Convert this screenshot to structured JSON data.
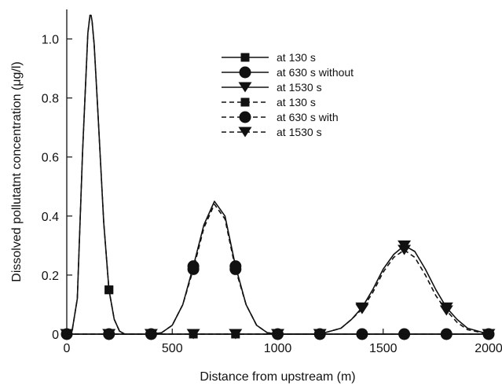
{
  "chart_data": {
    "type": "line",
    "title": "",
    "xlabel": "Distance from upstream (m)",
    "ylabel": "Dissolved pollutatnt concentration (μg/l)",
    "xlim": [
      0,
      2000
    ],
    "ylim": [
      0,
      1.1
    ],
    "xticks": [
      0,
      500,
      1000,
      1500,
      2000
    ],
    "yticks": [
      0,
      0.2,
      0.4,
      0.6,
      0.8,
      1.0
    ],
    "xtick_labels": [
      "0",
      "500",
      "1000",
      "1500",
      "2000"
    ],
    "ytick_labels": [
      "0",
      "0.2",
      "0.4",
      "0.6",
      "0.8",
      "1.0"
    ],
    "grid": false,
    "legend_position": "top-right",
    "series": [
      {
        "name": "at 130 s",
        "line": "solid",
        "marker": "square",
        "x": [
          0,
          25,
          50,
          75,
          100,
          110,
          115,
          120,
          130,
          150,
          175,
          200,
          225,
          250,
          275,
          300,
          2000
        ],
        "y": [
          0,
          0.01,
          0.12,
          0.62,
          1.02,
          1.08,
          1.08,
          1.06,
          0.98,
          0.72,
          0.38,
          0.15,
          0.05,
          0.01,
          0.0,
          0,
          0
        ],
        "marker_x": [
          200,
          400,
          600,
          800,
          1000,
          1200,
          1400,
          1600,
          1800,
          2000
        ],
        "marker_y": [
          0.15,
          0,
          0,
          0,
          0,
          0,
          0,
          0,
          0,
          0
        ]
      },
      {
        "name": "at 630 s without",
        "line": "solid",
        "marker": "circle",
        "x": [
          0,
          400,
          450,
          500,
          550,
          600,
          650,
          700,
          750,
          800,
          850,
          900,
          950,
          1000,
          2000
        ],
        "y": [
          0,
          0,
          0.005,
          0.03,
          0.1,
          0.23,
          0.37,
          0.45,
          0.4,
          0.23,
          0.1,
          0.03,
          0.005,
          0,
          0
        ],
        "marker_x": [
          0,
          200,
          400,
          600,
          800,
          1000,
          1200,
          1400,
          1600,
          1800,
          2000
        ],
        "marker_y": [
          0,
          0,
          0,
          0.23,
          0.23,
          0,
          0,
          0,
          0,
          0,
          0
        ]
      },
      {
        "name": "at 1530 s",
        "line": "solid",
        "marker": "triangle-down",
        "x": [
          0,
          1200,
          1300,
          1350,
          1400,
          1450,
          1500,
          1550,
          1600,
          1650,
          1700,
          1750,
          1800,
          1850,
          1900,
          2000
        ],
        "y": [
          0,
          0,
          0.02,
          0.05,
          0.09,
          0.15,
          0.22,
          0.27,
          0.3,
          0.28,
          0.22,
          0.15,
          0.09,
          0.05,
          0.02,
          0
        ],
        "marker_x": [
          0,
          200,
          400,
          600,
          800,
          1000,
          1200,
          1400,
          1600,
          1800,
          2000
        ],
        "marker_y": [
          0,
          0,
          0,
          0,
          0,
          0,
          0,
          0.09,
          0.3,
          0.09,
          0
        ]
      },
      {
        "name": "at 130 s",
        "line": "dashed",
        "marker": "square",
        "x": [
          0,
          25,
          50,
          75,
          100,
          110,
          115,
          120,
          130,
          150,
          175,
          200,
          225,
          250,
          275,
          300,
          2000
        ],
        "y": [
          0,
          0.01,
          0.12,
          0.62,
          1.02,
          1.08,
          1.08,
          1.06,
          0.98,
          0.72,
          0.38,
          0.15,
          0.05,
          0.01,
          0.0,
          0,
          0
        ],
        "marker_x": [
          200
        ],
        "marker_y": [
          0.15
        ]
      },
      {
        "name": "at 630 s with",
        "line": "dashed",
        "marker": "circle",
        "x": [
          0,
          400,
          450,
          500,
          550,
          600,
          650,
          700,
          750,
          800,
          850,
          900,
          950,
          1000,
          2000
        ],
        "y": [
          0,
          0,
          0.005,
          0.03,
          0.1,
          0.22,
          0.36,
          0.44,
          0.39,
          0.22,
          0.1,
          0.03,
          0.005,
          0,
          0
        ],
        "marker_x": [
          600,
          800
        ],
        "marker_y": [
          0.22,
          0.22
        ]
      },
      {
        "name": "at 1530 s",
        "line": "dashed",
        "marker": "triangle-down",
        "x": [
          0,
          1200,
          1300,
          1350,
          1400,
          1450,
          1500,
          1550,
          1600,
          1650,
          1700,
          1750,
          1800,
          1850,
          1900,
          2000
        ],
        "y": [
          0,
          0,
          0.02,
          0.05,
          0.085,
          0.14,
          0.21,
          0.26,
          0.285,
          0.26,
          0.2,
          0.13,
          0.08,
          0.04,
          0.015,
          0
        ],
        "marker_x": [
          1400,
          1600,
          1800
        ],
        "marker_y": [
          0.085,
          0.285,
          0.08
        ]
      }
    ]
  }
}
